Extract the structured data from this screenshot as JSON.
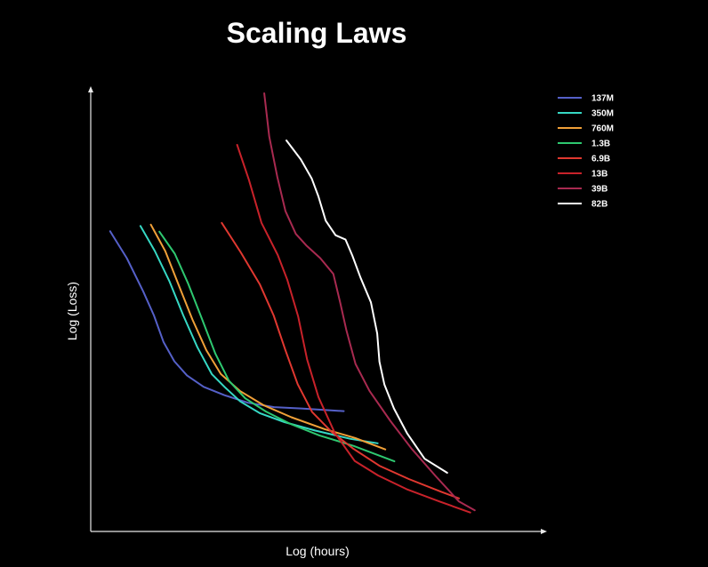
{
  "chart_data": {
    "type": "line",
    "title": "Scaling Laws",
    "xlabel": "Log (hours)",
    "ylabel": "Log (Loss)",
    "xlim": [
      0,
      100
    ],
    "ylim": [
      0,
      100
    ],
    "grid": false,
    "legend_position": "top-right",
    "series": [
      {
        "name": "137M",
        "color": "#5560c8",
        "x": [
          4.3,
          8.0,
          11.6,
          14.0,
          16.1,
          18.5,
          21.3,
          25.0,
          29.6,
          34.8,
          40.6,
          46.6,
          56.0
        ],
        "y": [
          68.1,
          62.0,
          54.5,
          49.0,
          43.0,
          38.6,
          35.4,
          32.8,
          30.9,
          29.2,
          28.2,
          27.9,
          27.3
        ]
      },
      {
        "name": "350M",
        "color": "#36d8c4",
        "x": [
          11.0,
          14.2,
          17.4,
          20.5,
          23.6,
          26.8,
          29.7,
          33.1,
          37.5,
          42.9,
          49.6,
          57.5,
          63.5
        ],
        "y": [
          69.3,
          63.6,
          56.8,
          49.0,
          41.8,
          35.7,
          32.7,
          29.5,
          26.8,
          24.8,
          22.9,
          21.0,
          20.0
        ]
      },
      {
        "name": "760M",
        "color": "#f0a038",
        "x": [
          13.3,
          16.5,
          19.5,
          22.5,
          25.6,
          28.8,
          33.0,
          38.3,
          44.4,
          51.8,
          58.5,
          65.2
        ],
        "y": [
          69.6,
          63.6,
          55.8,
          48.1,
          41.1,
          35.7,
          31.9,
          28.6,
          25.9,
          23.2,
          21.2,
          18.6
        ]
      },
      {
        "name": "1.3B",
        "color": "#2ec870",
        "x": [
          15.2,
          18.6,
          21.5,
          24.5,
          27.6,
          30.6,
          34.2,
          38.8,
          44.2,
          50.6,
          58.2,
          67.2
        ],
        "y": [
          68.0,
          63.0,
          56.4,
          48.5,
          40.3,
          34.2,
          30.2,
          27.2,
          24.4,
          21.8,
          19.4,
          15.9
        ]
      },
      {
        "name": "6.9B",
        "color": "#e03830",
        "x": [
          29.0,
          33.2,
          37.4,
          40.5,
          43.1,
          45.8,
          49.0,
          53.3,
          58.1,
          63.9,
          70.4,
          77.6,
          81.5
        ],
        "y": [
          70.0,
          63.3,
          56.1,
          49.0,
          41.1,
          33.4,
          27.1,
          22.6,
          18.8,
          14.9,
          11.9,
          9.0,
          7.5
        ]
      },
      {
        "name": "13B",
        "color": "#c8222a",
        "x": [
          32.4,
          35.0,
          37.8,
          41.4,
          43.5,
          45.9,
          47.9,
          50.4,
          54.0,
          58.4,
          63.6,
          69.9,
          77.2,
          84.0
        ],
        "y": [
          87.7,
          79.8,
          70.0,
          62.7,
          57.1,
          48.8,
          39.0,
          30.5,
          22.4,
          16.0,
          12.7,
          9.6,
          6.8,
          4.3
        ]
      },
      {
        "name": "39B",
        "color": "#a82a50",
        "x": [
          38.4,
          39.5,
          41.3,
          43.1,
          45.4,
          47.7,
          50.8,
          53.7,
          55.2,
          56.6,
          58.6,
          61.7,
          66.3,
          71.0,
          76.3,
          81.5,
          85.0
        ],
        "y": [
          99.4,
          89.6,
          80.4,
          72.7,
          67.5,
          64.9,
          62.0,
          58.4,
          52.0,
          45.6,
          38.0,
          31.9,
          25.1,
          18.8,
          12.6,
          6.8,
          4.8
        ]
      },
      {
        "name": "82B",
        "color": "#ffffff",
        "x": [
          43.3,
          46.5,
          48.9,
          50.4,
          52.0,
          54.2,
          56.4,
          57.9,
          59.7,
          62.0,
          63.4,
          63.9,
          65.0,
          67.1,
          70.0,
          73.9,
          78.9
        ],
        "y": [
          88.7,
          84.4,
          80.1,
          76.0,
          70.5,
          67.2,
          66.2,
          62.6,
          57.6,
          52.0,
          44.9,
          38.5,
          33.3,
          27.9,
          22.3,
          16.5,
          13.3
        ]
      }
    ]
  }
}
